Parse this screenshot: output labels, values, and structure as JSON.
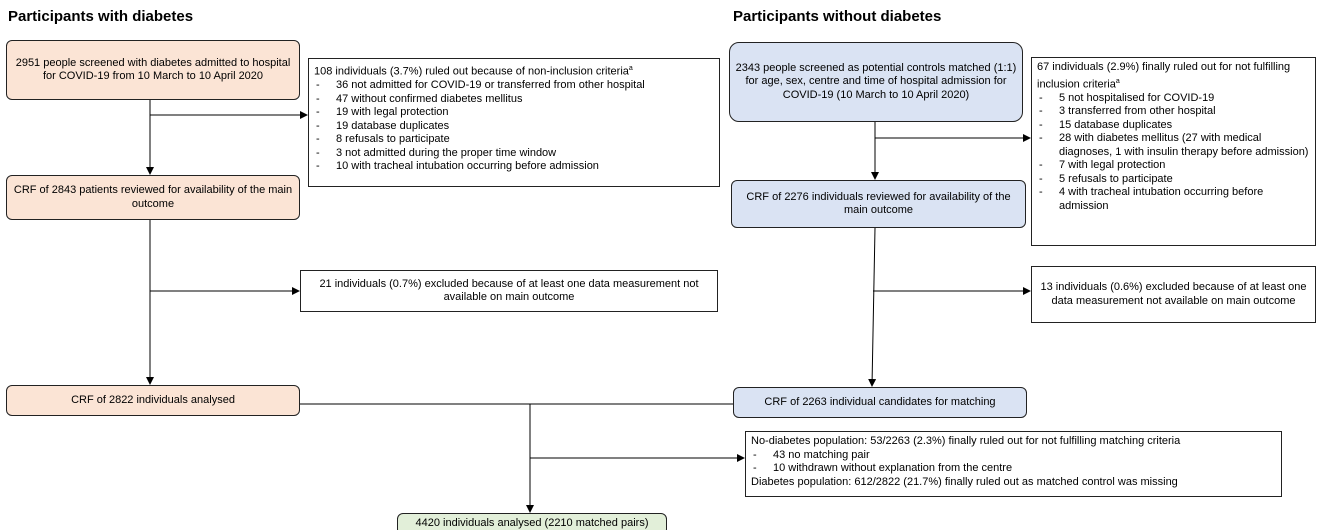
{
  "diabetes": {
    "heading": "Participants with diabetes",
    "screened": "2951 people screened with diabetes admitted to hospital for COVID-19 from 10 March to 10 April 2020",
    "excluded": {
      "intro": "108 individuals (3.7%) ruled out because of non-inclusion criteria",
      "superscript": "a",
      "items": [
        "36 not admitted for COVID-19 or transferred from other hospital",
        "47 without confirmed diabetes mellitus",
        "19 with legal protection",
        "19 database duplicates",
        "8 refusals to participate",
        "3 not admitted during the proper time window",
        "10 with tracheal intubation occurring before admission"
      ]
    },
    "reviewed": "CRF of 2843 patients reviewed for availability of the main outcome",
    "missing_outcome": "21 individuals (0.7%) excluded because of at least one data measurement not available on main outcome",
    "analysed": "CRF of 2822 individuals analysed"
  },
  "no_diabetes": {
    "heading": "Participants without diabetes",
    "screened": "2343 people screened as potential controls matched (1:1) for age, sex, centre and time of hospital admission for COVID-19 (10 March to 10 April 2020)",
    "excluded": {
      "intro": "67 individuals (2.9%) finally ruled out for not fulfilling inclusion criteria",
      "superscript": "a",
      "items": [
        "5 not hospitalised for COVID-19",
        "3 transferred from other hospital",
        "15 database duplicates",
        "28 with diabetes mellitus (27 with medical diagnoses, 1 with insulin therapy before admission)",
        "7 with legal protection",
        "5 refusals to participate",
        "4 with tracheal intubation occurring before admission"
      ]
    },
    "reviewed": "CRF of 2276 individuals reviewed for availability of the main outcome",
    "missing_outcome": "13 individuals (0.6%) excluded because of at least one data measurement not available on main outcome",
    "candidates": "CRF of 2263 individual candidates for matching"
  },
  "matching": {
    "no_diabetes_line": "No-diabetes population: 53/2263 (2.3%) finally ruled out for not fulfilling matching criteria",
    "items": [
      "43 no matching pair",
      "10 withdrawn without explanation from the centre"
    ],
    "diabetes_line": "Diabetes population: 612/2822 (21.7%) finally ruled out as matched control was missing"
  },
  "final": "4420 individuals analysed (2210 matched pairs)"
}
